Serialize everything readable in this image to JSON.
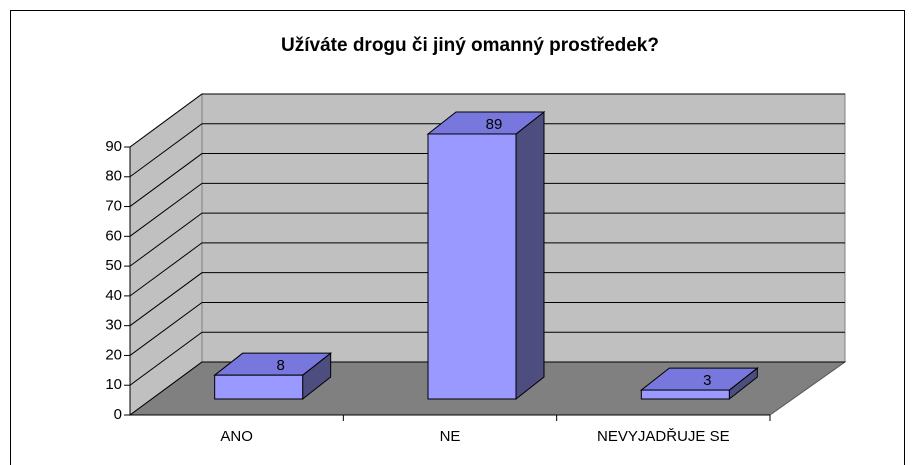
{
  "chart_data": {
    "type": "bar3d",
    "title": "Užíváte drogu či jiný omanný prostředek?",
    "categories": [
      "ANO",
      "NE",
      "NEVYJADŘUJE SE"
    ],
    "values": [
      8,
      89,
      3
    ],
    "color": "#9999ff",
    "ylim": [
      0,
      90
    ],
    "yticks": [
      0,
      10,
      20,
      30,
      40,
      50,
      60,
      70,
      80,
      90
    ],
    "grid": true
  }
}
